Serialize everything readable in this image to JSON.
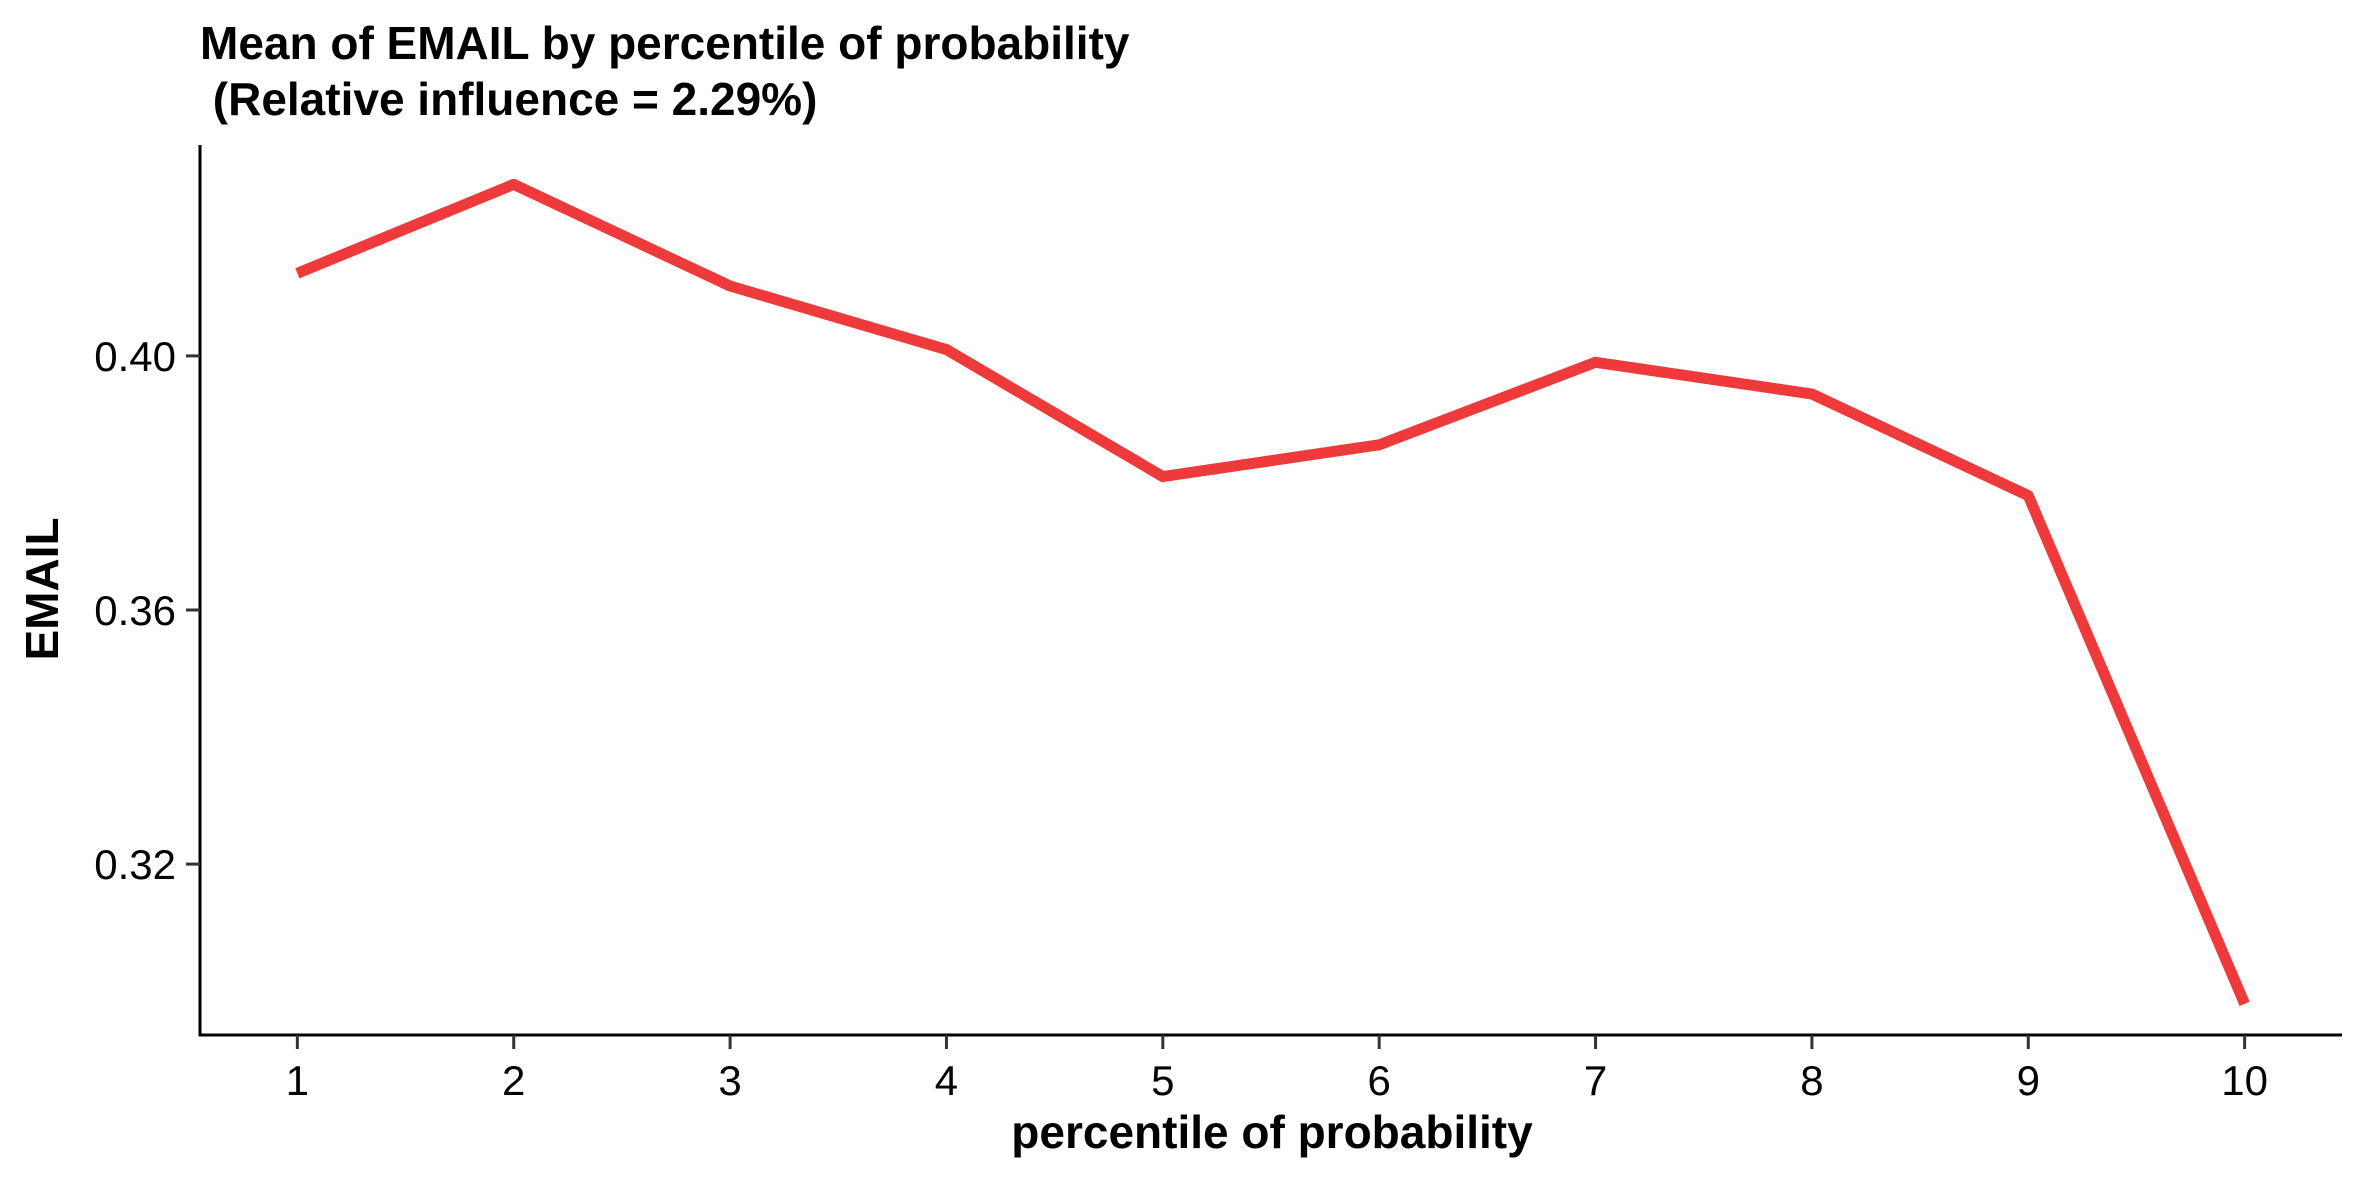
{
  "chart_data": {
    "type": "line",
    "title_line1": "Mean of EMAIL by percentile of probability",
    "title_line2": " (Relative influence = 2.29%)",
    "xlabel": "percentile of probability",
    "ylabel": "EMAIL",
    "x": [
      1,
      2,
      3,
      4,
      5,
      6,
      7,
      8,
      9,
      10
    ],
    "x_tick_labels": [
      "1",
      "2",
      "3",
      "4",
      "5",
      "6",
      "7",
      "8",
      "9",
      "10"
    ],
    "series": [
      {
        "values": [
          0.413,
          0.427,
          0.411,
          0.401,
          0.381,
          0.386,
          0.399,
          0.394,
          0.378,
          0.298
        ]
      }
    ],
    "y_ticks": [
      0.32,
      0.36,
      0.4
    ],
    "y_tick_labels": [
      "0.32",
      "0.36",
      "0.40"
    ],
    "xlim": [
      0.55,
      10.45
    ],
    "ylim": [
      0.2931,
      0.4332
    ],
    "line_color": "#EE3A3A",
    "grid": false,
    "legend": "none"
  }
}
